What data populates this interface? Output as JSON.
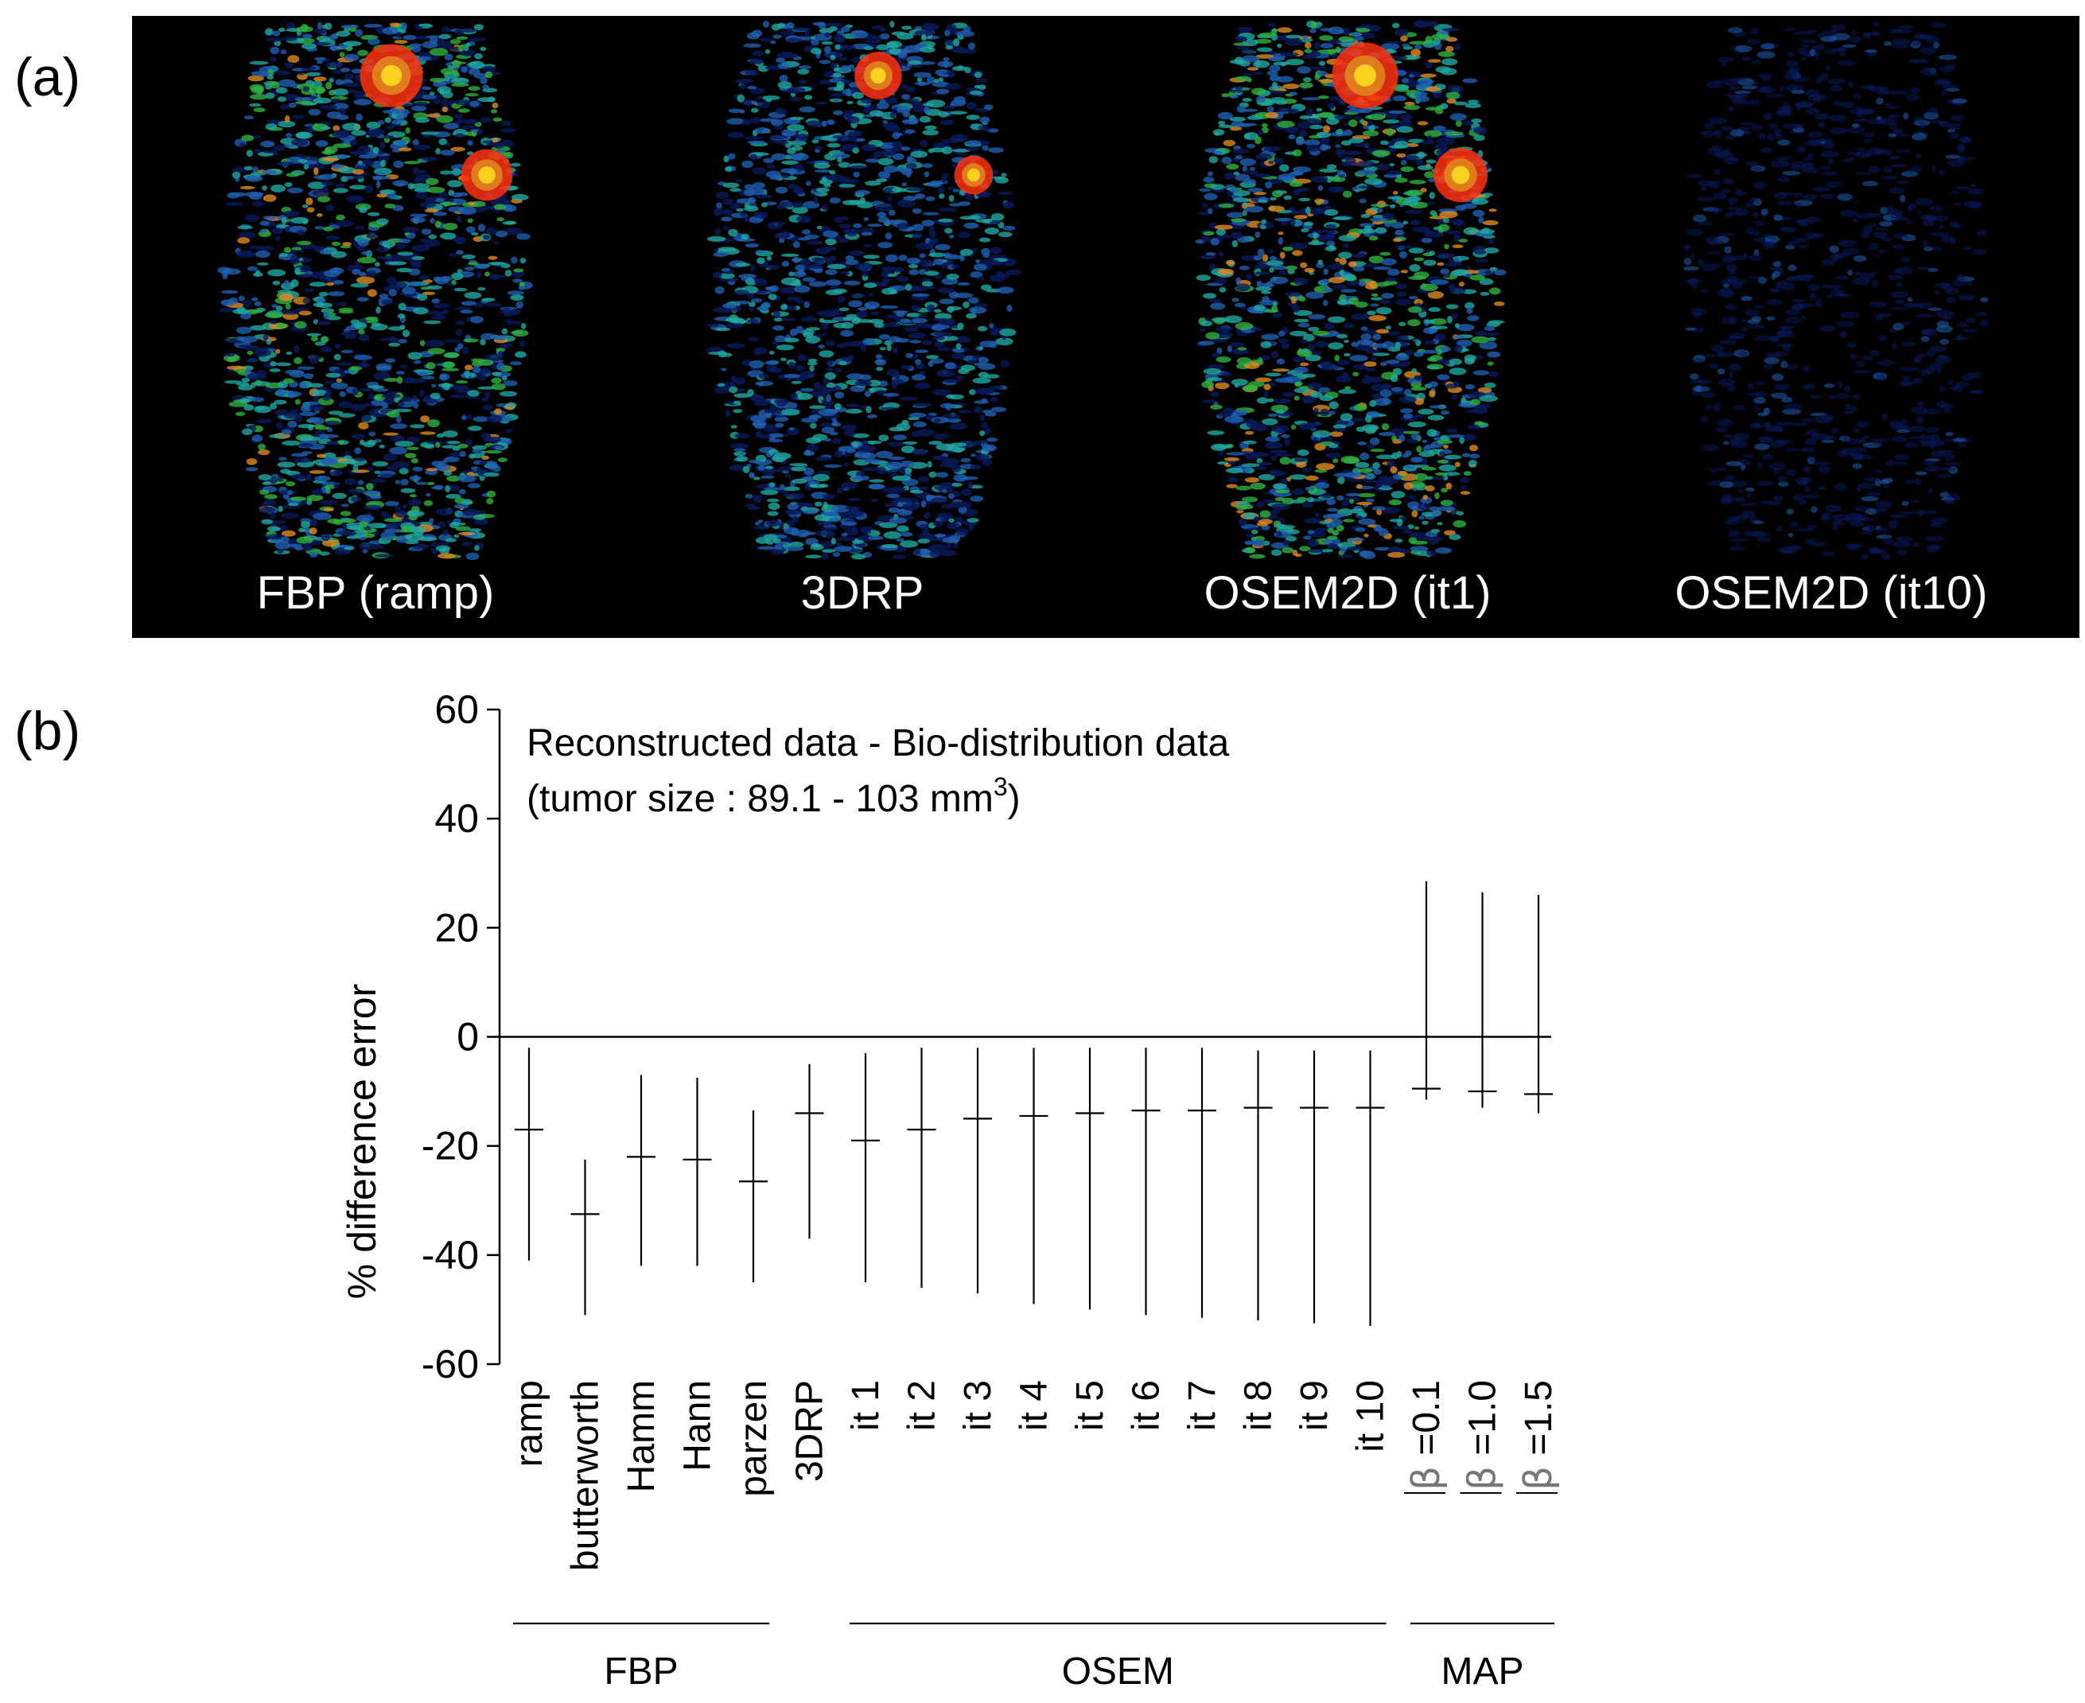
{
  "panel_labels": {
    "a": "(a)",
    "b": "(b)"
  },
  "image_strip": {
    "captions": [
      "FBP (ramp)",
      "3DRP",
      "OSEM2D (it1)",
      "OSEM2D (it10)"
    ],
    "colormap": [
      "#000000",
      "#0a1a5a",
      "#1f5fb0",
      "#20a8a0",
      "#2fb040",
      "#e08a20",
      "#ff3010",
      "#ffe020"
    ]
  },
  "chart_data": {
    "type": "errorbar",
    "annotation": [
      "Reconstructed data - Bio-distribution data",
      "(tumor size : 89.1 - 103 mm",
      "3",
      ")"
    ],
    "ylabel": "% difference error",
    "ylim": [
      -60,
      60
    ],
    "yticks": [
      60,
      40,
      20,
      0,
      -20,
      -40,
      -60
    ],
    "reference_line": 0,
    "categories": [
      "ramp",
      "butterworth",
      "Hamm",
      "Hann",
      "parzen",
      "3DRP",
      "it 1",
      "it 2",
      "it 3",
      "it 4",
      "it 5",
      "it 6",
      "it 7",
      "it 8",
      "it 9",
      "it 10",
      "β =0.1",
      "β =1.0",
      "β =1.5"
    ],
    "mean": [
      -17,
      -32.5,
      -22,
      -22.5,
      -26.5,
      -14,
      -19,
      -17,
      -15,
      -14.5,
      -14,
      -13.5,
      -13.5,
      -13,
      -13,
      -13,
      -9.5,
      -10,
      -10.5
    ],
    "upper": [
      -2,
      -22.5,
      -7,
      -7.5,
      -13.5,
      -5,
      -3,
      -2,
      -2,
      -2,
      -2,
      -2,
      -2,
      -2.5,
      -2.5,
      -2.5,
      28.5,
      26.5,
      26
    ],
    "lower": [
      -41,
      -51,
      -42,
      -42,
      -45,
      -37,
      -45,
      -46,
      -47,
      -49,
      -50,
      -51,
      -51.5,
      -52,
      -52.5,
      -53,
      -11.5,
      -13,
      -14
    ],
    "groups": [
      {
        "label": "FBP",
        "first": 0,
        "last": 4
      },
      {
        "label": "OSEM",
        "first": 6,
        "last": 15
      },
      {
        "label": "MAP",
        "first": 16,
        "last": 18
      }
    ]
  }
}
